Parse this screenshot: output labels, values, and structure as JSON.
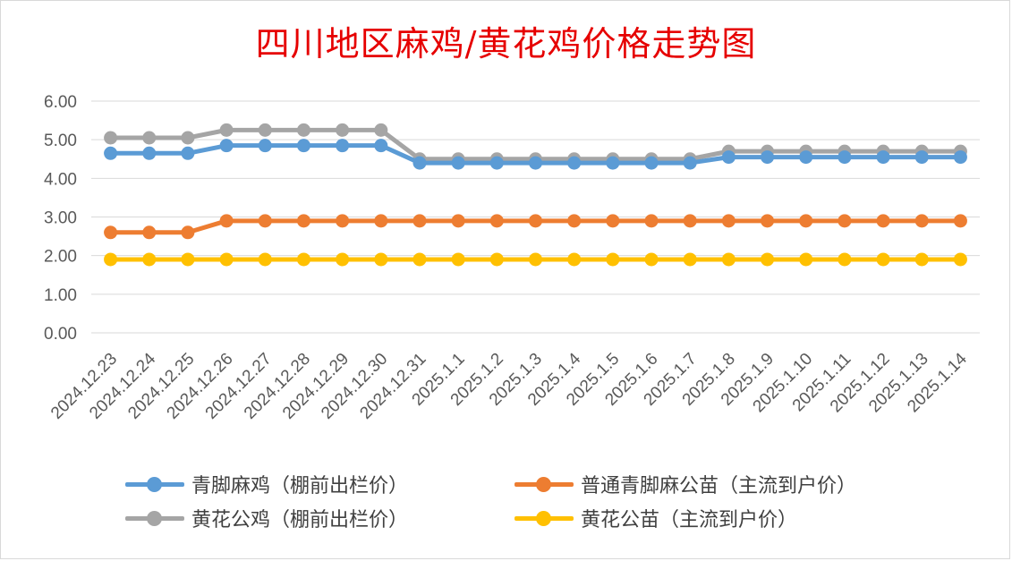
{
  "chart_data": {
    "type": "line",
    "title": "四川地区麻鸡/黄花鸡价格走势图",
    "categories": [
      "2024.12.23",
      "2024.12.24",
      "2024.12.25",
      "2024.12.26",
      "2024.12.27",
      "2024.12.28",
      "2024.12.29",
      "2024.12.30",
      "2024.12.31",
      "2025.1.1",
      "2025.1.2",
      "2025.1.3",
      "2025.1.4",
      "2025.1.5",
      "2025.1.6",
      "2025.1.7",
      "2025.1.8",
      "2025.1.9",
      "2025.1.10",
      "2025.1.11",
      "2025.1.12",
      "2025.1.13",
      "2025.1.14"
    ],
    "ylim": [
      0,
      6
    ],
    "yticks": [
      "0.00",
      "1.00",
      "2.00",
      "3.00",
      "4.00",
      "5.00",
      "6.00"
    ],
    "grid": true,
    "legend_position": "bottom",
    "series": [
      {
        "name": "青脚麻鸡（棚前出栏价）",
        "color": "#5b9bd5",
        "values": [
          4.65,
          4.65,
          4.65,
          4.85,
          4.85,
          4.85,
          4.85,
          4.85,
          4.4,
          4.4,
          4.4,
          4.4,
          4.4,
          4.4,
          4.4,
          4.4,
          4.55,
          4.55,
          4.55,
          4.55,
          4.55,
          4.55,
          4.55
        ]
      },
      {
        "name": "普通青脚麻公苗（主流到户价）",
        "color": "#ed7d31",
        "values": [
          2.6,
          2.6,
          2.6,
          2.9,
          2.9,
          2.9,
          2.9,
          2.9,
          2.9,
          2.9,
          2.9,
          2.9,
          2.9,
          2.9,
          2.9,
          2.9,
          2.9,
          2.9,
          2.9,
          2.9,
          2.9,
          2.9,
          2.9
        ]
      },
      {
        "name": "黄花公鸡（棚前出栏价）",
        "color": "#a5a5a5",
        "values": [
          5.05,
          5.05,
          5.05,
          5.25,
          5.25,
          5.25,
          5.25,
          5.25,
          4.5,
          4.5,
          4.5,
          4.5,
          4.5,
          4.5,
          4.5,
          4.5,
          4.7,
          4.7,
          4.7,
          4.7,
          4.7,
          4.7,
          4.7
        ]
      },
      {
        "name": "黄花公苗（主流到户价）",
        "color": "#ffc000",
        "values": [
          1.9,
          1.9,
          1.9,
          1.9,
          1.9,
          1.9,
          1.9,
          1.9,
          1.9,
          1.9,
          1.9,
          1.9,
          1.9,
          1.9,
          1.9,
          1.9,
          1.9,
          1.9,
          1.9,
          1.9,
          1.9,
          1.9,
          1.9
        ]
      }
    ]
  }
}
